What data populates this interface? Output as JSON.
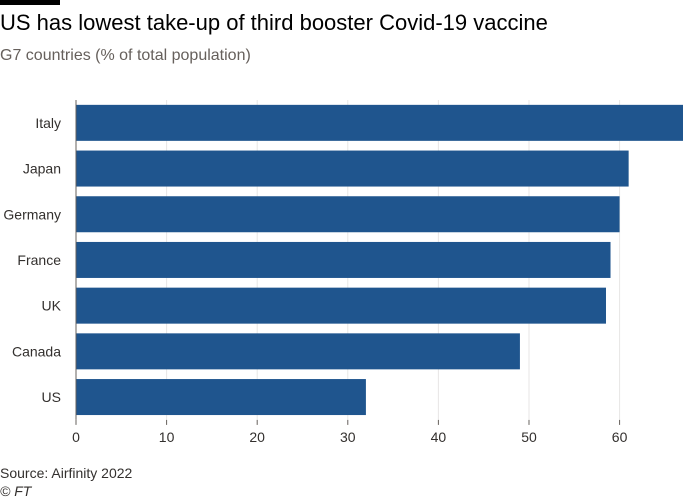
{
  "header": {
    "title": "US has lowest take-up of third booster Covid-19 vaccine",
    "subtitle": "G7 countries (% of total population)"
  },
  "footer": {
    "source": "Source: Airfinity 2022",
    "credit": "© FT"
  },
  "colors": {
    "bar": "#1f558e",
    "grid": "#e7e6e5",
    "axis": "#66605c"
  },
  "chart_data": {
    "type": "bar",
    "orientation": "horizontal",
    "title": "US has lowest take-up of third booster Covid-19 vaccine",
    "subtitle": "G7 countries (% of total population)",
    "xlabel": "",
    "ylabel": "",
    "categories": [
      "Italy",
      "Japan",
      "Germany",
      "France",
      "UK",
      "Canada",
      "US"
    ],
    "values": [
      67,
      61,
      60,
      59,
      58.5,
      49,
      32
    ],
    "xlim": [
      0,
      67
    ],
    "xticks": [
      0,
      10,
      20,
      30,
      40,
      50,
      60
    ],
    "grid": true
  }
}
